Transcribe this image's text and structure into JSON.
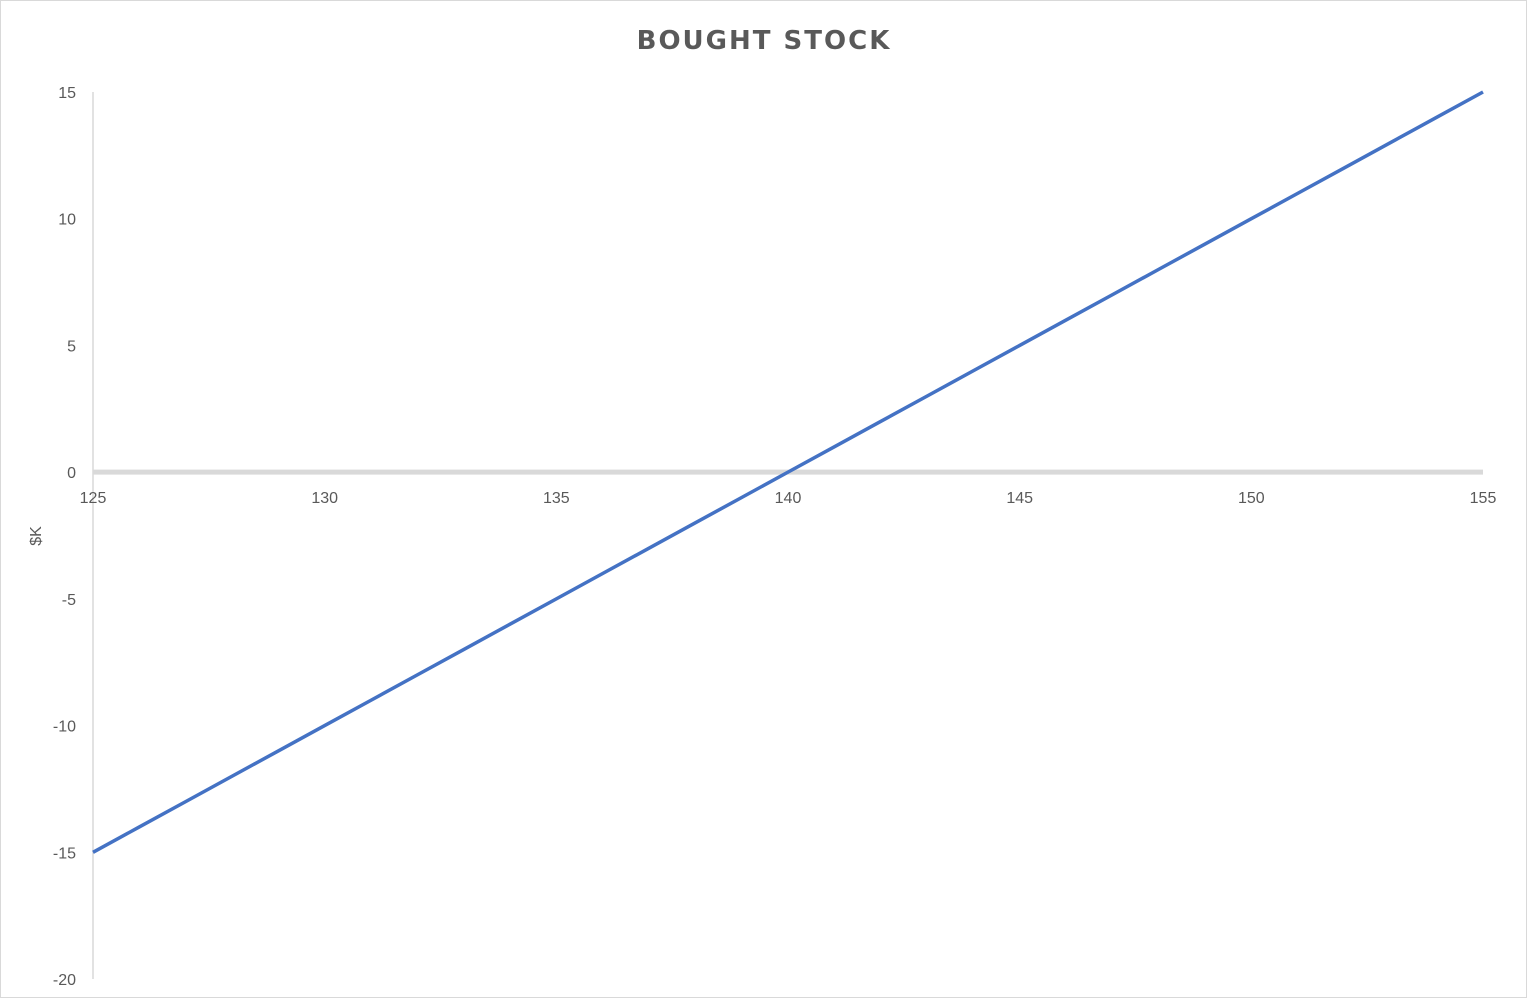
{
  "chart_data": {
    "type": "line",
    "title": "BOUGHT STOCK",
    "xlabel": "",
    "ylabel": "$K",
    "xlim": [
      125,
      155
    ],
    "ylim": [
      -20,
      15
    ],
    "x_ticks": [
      125,
      130,
      135,
      140,
      145,
      150,
      155
    ],
    "y_ticks": [
      15,
      10,
      5,
      0,
      -5,
      -10,
      -15,
      -20
    ],
    "grid": false,
    "legend": "none",
    "series": [
      {
        "color": "#4472C4",
        "x": [
          125,
          126,
          127,
          128,
          129,
          130,
          131,
          132,
          133,
          134,
          135,
          136,
          137,
          138,
          139,
          140,
          141,
          142,
          143,
          144,
          145,
          146,
          147,
          148,
          149,
          150,
          151,
          152,
          153,
          154,
          155
        ],
        "y": [
          -15,
          -14,
          -13,
          -12,
          -11,
          -10,
          -9,
          -8,
          -7,
          -6,
          -5,
          -4,
          -3,
          -2,
          -1,
          0,
          1,
          2,
          3,
          4,
          5,
          6,
          7,
          8,
          9,
          10,
          11,
          12,
          13,
          14,
          15
        ]
      }
    ],
    "axis_color": "#d9d9d9"
  }
}
